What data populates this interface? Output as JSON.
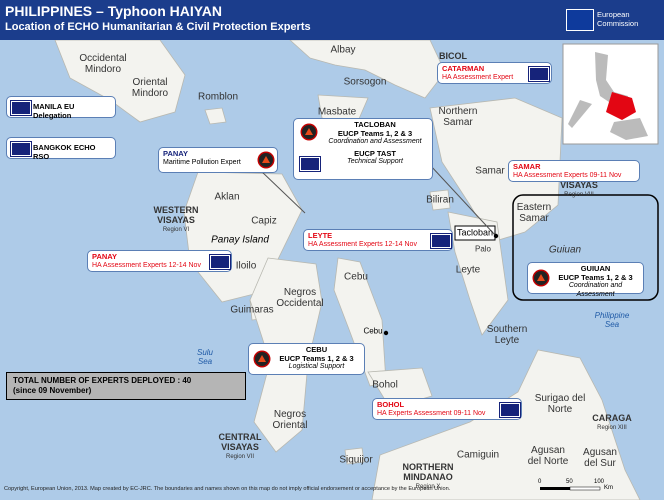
{
  "header": {
    "title": "PHILIPPINES – Typhoon HAIYAN",
    "subtitle": "Location of ECHO Humanitarian & Civil Protection Experts",
    "logo": [
      "European",
      "Commission"
    ]
  },
  "places": [
    "Occidental Mindoro",
    "Oriental Mindoro",
    "Romblon",
    "Albay",
    "Sorsogon",
    "Masbate",
    "Northern Samar",
    "Samar",
    "Eastern Samar",
    "Guiuan",
    "Biliran",
    "Tacloban",
    "Palo",
    "Leyte",
    "Aklan",
    "Capiz",
    "Panay Island",
    "Iloilo",
    "Guimaras",
    "Negros Occidental",
    "Cebu",
    "Cebu",
    "Southern Leyte",
    "Bohol",
    "Sulu Sea",
    "Philippine Sea",
    "Negros Oriental",
    "Siquijor",
    "Camiguin",
    "Surigao del Norte",
    "Agusan del Norte",
    "Agusan del Sur"
  ],
  "regions": [
    {
      "name": "BICOL"
    },
    {
      "name": "VISAYAS",
      "code": "Region VIII"
    },
    {
      "name": "WESTERN VISAYAS",
      "code": "Region VI"
    },
    {
      "name": "CENTRAL VISAYAS",
      "code": "Region VII"
    },
    {
      "name": "NORTHERN MINDANAO",
      "code": "Region X"
    },
    {
      "name": "CARAGA",
      "code": "Region XIII"
    }
  ],
  "boxes": [
    {
      "title": "MANILA EU Delegation"
    },
    {
      "title": "BANGKOK ECHO RSO"
    },
    {
      "title": "PANAY",
      "lines": [
        "Maritime Pollution Expert"
      ]
    },
    {
      "title": "TACLOBAN",
      "lines": [
        "EUCP Teams 1, 2 & 3",
        "Coordination and Assessment",
        "EUCP TAST",
        "Technical Support"
      ]
    },
    {
      "title": "CATARMAN",
      "lines": [
        "HA Assessment Expert"
      ]
    },
    {
      "title": "SAMAR",
      "lines": [
        "HA Assessment Experts 09-11 Nov"
      ]
    },
    {
      "title": "LEYTE",
      "lines": [
        "HA Assessment Experts 12-14 Nov"
      ]
    },
    {
      "title": "PANAY",
      "lines": [
        "HA Assessment Experts 12-14 Nov"
      ]
    },
    {
      "title": "GUIUAN",
      "lines": [
        "EUCP Teams 1, 2 & 3",
        "Coordination and Assessment"
      ]
    },
    {
      "title": "CEBU",
      "lines": [
        "EUCP Teams 1, 2 & 3",
        "Logistical Support"
      ]
    },
    {
      "title": "BOHOL",
      "lines": [
        "HA Experts Assessment 09-11 Nov"
      ]
    }
  ],
  "total": [
    "TOTAL NUMBER OF EXPERTS DEPLOYED : 40",
    "(since 09 November)"
  ],
  "footer": "Copyright, European Union, 2013. Map created by EC-JRC. The boundaries and names shown on this map do not imply official endorsement or acceptance by the European Union.",
  "scale": {
    "ticks": [
      0,
      50,
      100
    ],
    "unit": "Km"
  }
}
